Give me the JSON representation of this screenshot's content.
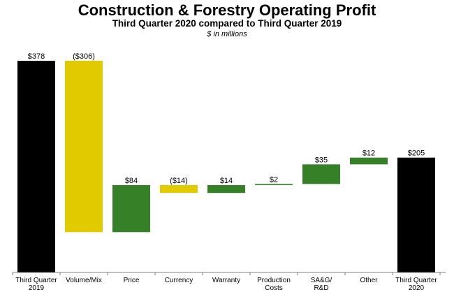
{
  "chart_data": {
    "type": "waterfall",
    "title": "Construction & Forestry Operating Profit",
    "subtitle": "Third Quarter 2020 compared to Third Quarter 2019",
    "units_note": "$ in millions",
    "categories": [
      [
        "Third Quarter",
        "2019"
      ],
      [
        "Volume/Mix"
      ],
      [
        "Price"
      ],
      [
        "Currency"
      ],
      [
        "Warranty"
      ],
      [
        "Production",
        "Costs"
      ],
      [
        "SA&G/",
        "R&D"
      ],
      [
        "Other"
      ],
      [
        "Third Quarter",
        "2020"
      ]
    ],
    "values": [
      378,
      -306,
      84,
      -14,
      14,
      2,
      35,
      12,
      205
    ],
    "kinds": [
      "total",
      "delta",
      "delta",
      "delta",
      "delta",
      "delta",
      "delta",
      "delta",
      "total"
    ],
    "value_labels": [
      "$378",
      "($306)",
      "$84",
      "($14)",
      "$14",
      "$2",
      "$35",
      "$12",
      "$205"
    ],
    "ylim": [
      0,
      378
    ],
    "colors": {
      "total": "#000000",
      "increase": "#368128",
      "decrease": "#e1cb00",
      "axis": "#808080"
    }
  }
}
